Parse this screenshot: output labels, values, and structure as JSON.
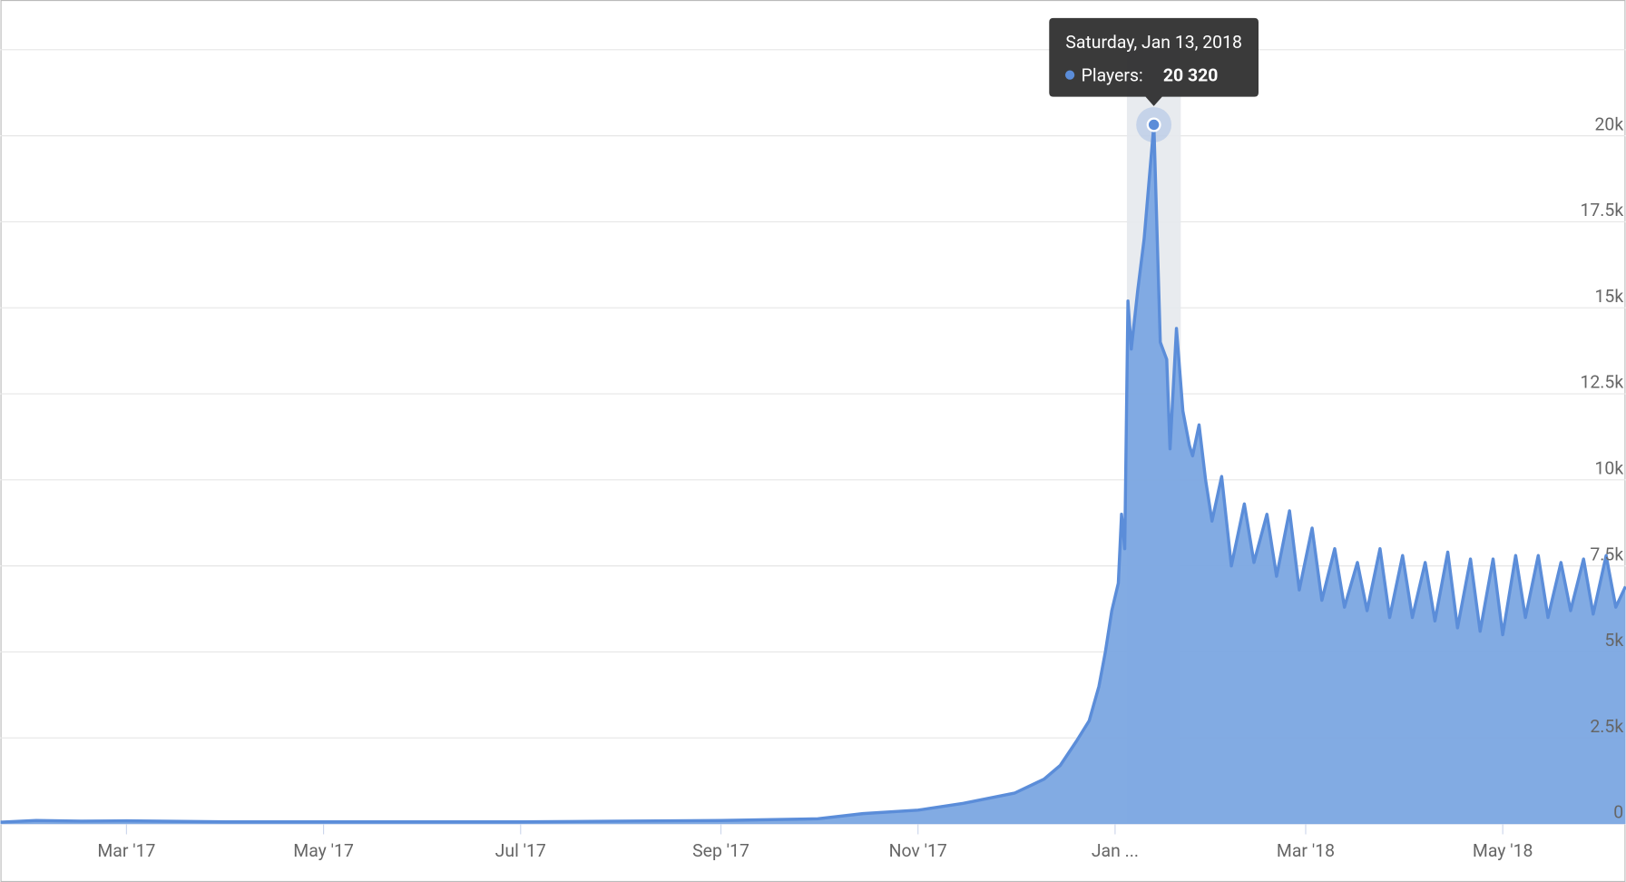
{
  "chart_data": {
    "type": "area",
    "tooltip_title": "Saturday, Jan 13, 2018",
    "tooltip_label": "Players:",
    "xlim": [
      "2017-01-21",
      "2018-06-08"
    ],
    "xticks": [
      {
        "value": "2017-03-01",
        "label": "Mar '17"
      },
      {
        "value": "2017-05-01",
        "label": "May '17"
      },
      {
        "value": "2017-07-01",
        "label": "Jul '17"
      },
      {
        "value": "2017-09-01",
        "label": "Sep '17"
      },
      {
        "value": "2017-11-01",
        "label": "Nov '17"
      },
      {
        "value": "2018-01-01",
        "label": "Jan ..."
      },
      {
        "value": "2018-03-01",
        "label": "Mar '18"
      },
      {
        "value": "2018-05-01",
        "label": "May '18"
      }
    ],
    "ylim": [
      0,
      22500
    ],
    "yticks": [
      0,
      {
        "value": 2500,
        "label": "2.5k"
      },
      {
        "value": 5000,
        "label": "5k"
      },
      {
        "value": 7500,
        "label": "7.5k"
      },
      {
        "value": 10000,
        "label": "10k"
      },
      {
        "value": 12500,
        "label": "12.5k"
      },
      {
        "value": 15000,
        "label": "15k"
      },
      {
        "value": 17500,
        "label": "17.5k"
      },
      {
        "value": 20000,
        "label": "20k"
      }
    ],
    "grid": true,
    "x": [
      "2017-01-21",
      "2017-02-01",
      "2017-02-15",
      "2017-03-01",
      "2017-04-01",
      "2017-05-01",
      "2017-06-01",
      "2017-07-01",
      "2017-08-01",
      "2017-09-01",
      "2017-10-01",
      "2017-10-15",
      "2017-11-01",
      "2017-11-15",
      "2017-12-01",
      "2017-12-10",
      "2017-12-15",
      "2017-12-20",
      "2017-12-24",
      "2017-12-27",
      "2017-12-29",
      "2017-12-31",
      "2018-01-02",
      "2018-01-03",
      "2018-01-04",
      "2018-01-05",
      "2018-01-06",
      "2018-01-08",
      "2018-01-10",
      "2018-01-13",
      "2018-01-15",
      "2018-01-17",
      "2018-01-18",
      "2018-01-20",
      "2018-01-22",
      "2018-01-24",
      "2018-01-25",
      "2018-01-27",
      "2018-01-29",
      "2018-01-31",
      "2018-02-03",
      "2018-02-06",
      "2018-02-10",
      "2018-02-13",
      "2018-02-17",
      "2018-02-20",
      "2018-02-24",
      "2018-02-27",
      "2018-03-03",
      "2018-03-06",
      "2018-03-10",
      "2018-03-13",
      "2018-03-17",
      "2018-03-20",
      "2018-03-24",
      "2018-03-27",
      "2018-03-31",
      "2018-04-03",
      "2018-04-07",
      "2018-04-10",
      "2018-04-14",
      "2018-04-17",
      "2018-04-21",
      "2018-04-24",
      "2018-04-28",
      "2018-05-01",
      "2018-05-05",
      "2018-05-08",
      "2018-05-12",
      "2018-05-15",
      "2018-05-19",
      "2018-05-22",
      "2018-05-26",
      "2018-05-29",
      "2018-06-02",
      "2018-06-05",
      "2018-06-08"
    ],
    "series": [
      {
        "name": "Players",
        "color": "#5b8dd9",
        "fill": "#7ba6e2",
        "values": [
          50,
          100,
          80,
          90,
          60,
          60,
          60,
          60,
          80,
          100,
          150,
          300,
          400,
          600,
          900,
          1300,
          1700,
          2400,
          3000,
          4000,
          5000,
          6200,
          7000,
          9000,
          8000,
          15200,
          13800,
          15500,
          17000,
          20320,
          14000,
          13500,
          10900,
          14400,
          12000,
          11000,
          10700,
          11600,
          10000,
          8800,
          10100,
          7500,
          9300,
          7600,
          9000,
          7200,
          9100,
          6800,
          8600,
          6500,
          8000,
          6300,
          7600,
          6200,
          8000,
          6000,
          7800,
          6000,
          7600,
          5900,
          7900,
          5700,
          7700,
          5600,
          7700,
          5500,
          7800,
          6000,
          7800,
          6000,
          7600,
          6200,
          7700,
          6100,
          7800,
          6300,
          6900
        ],
        "value_labels": [
          null,
          null,
          null,
          null,
          null,
          null,
          null,
          null,
          null,
          null,
          null,
          null,
          null,
          null,
          null,
          null,
          null,
          null,
          null,
          null,
          null,
          null,
          null,
          null,
          null,
          null,
          null,
          null,
          null,
          "20 320",
          null,
          null,
          null,
          null,
          null,
          null,
          null,
          null,
          null,
          null,
          null,
          null,
          null,
          null,
          null,
          null,
          null,
          null,
          null,
          null,
          null,
          null,
          null,
          null,
          null,
          null,
          null,
          null,
          null,
          null,
          null,
          null,
          null,
          null,
          null,
          null,
          null,
          null,
          null,
          null,
          null,
          null,
          null,
          null,
          null,
          null,
          null
        ]
      }
    ]
  }
}
